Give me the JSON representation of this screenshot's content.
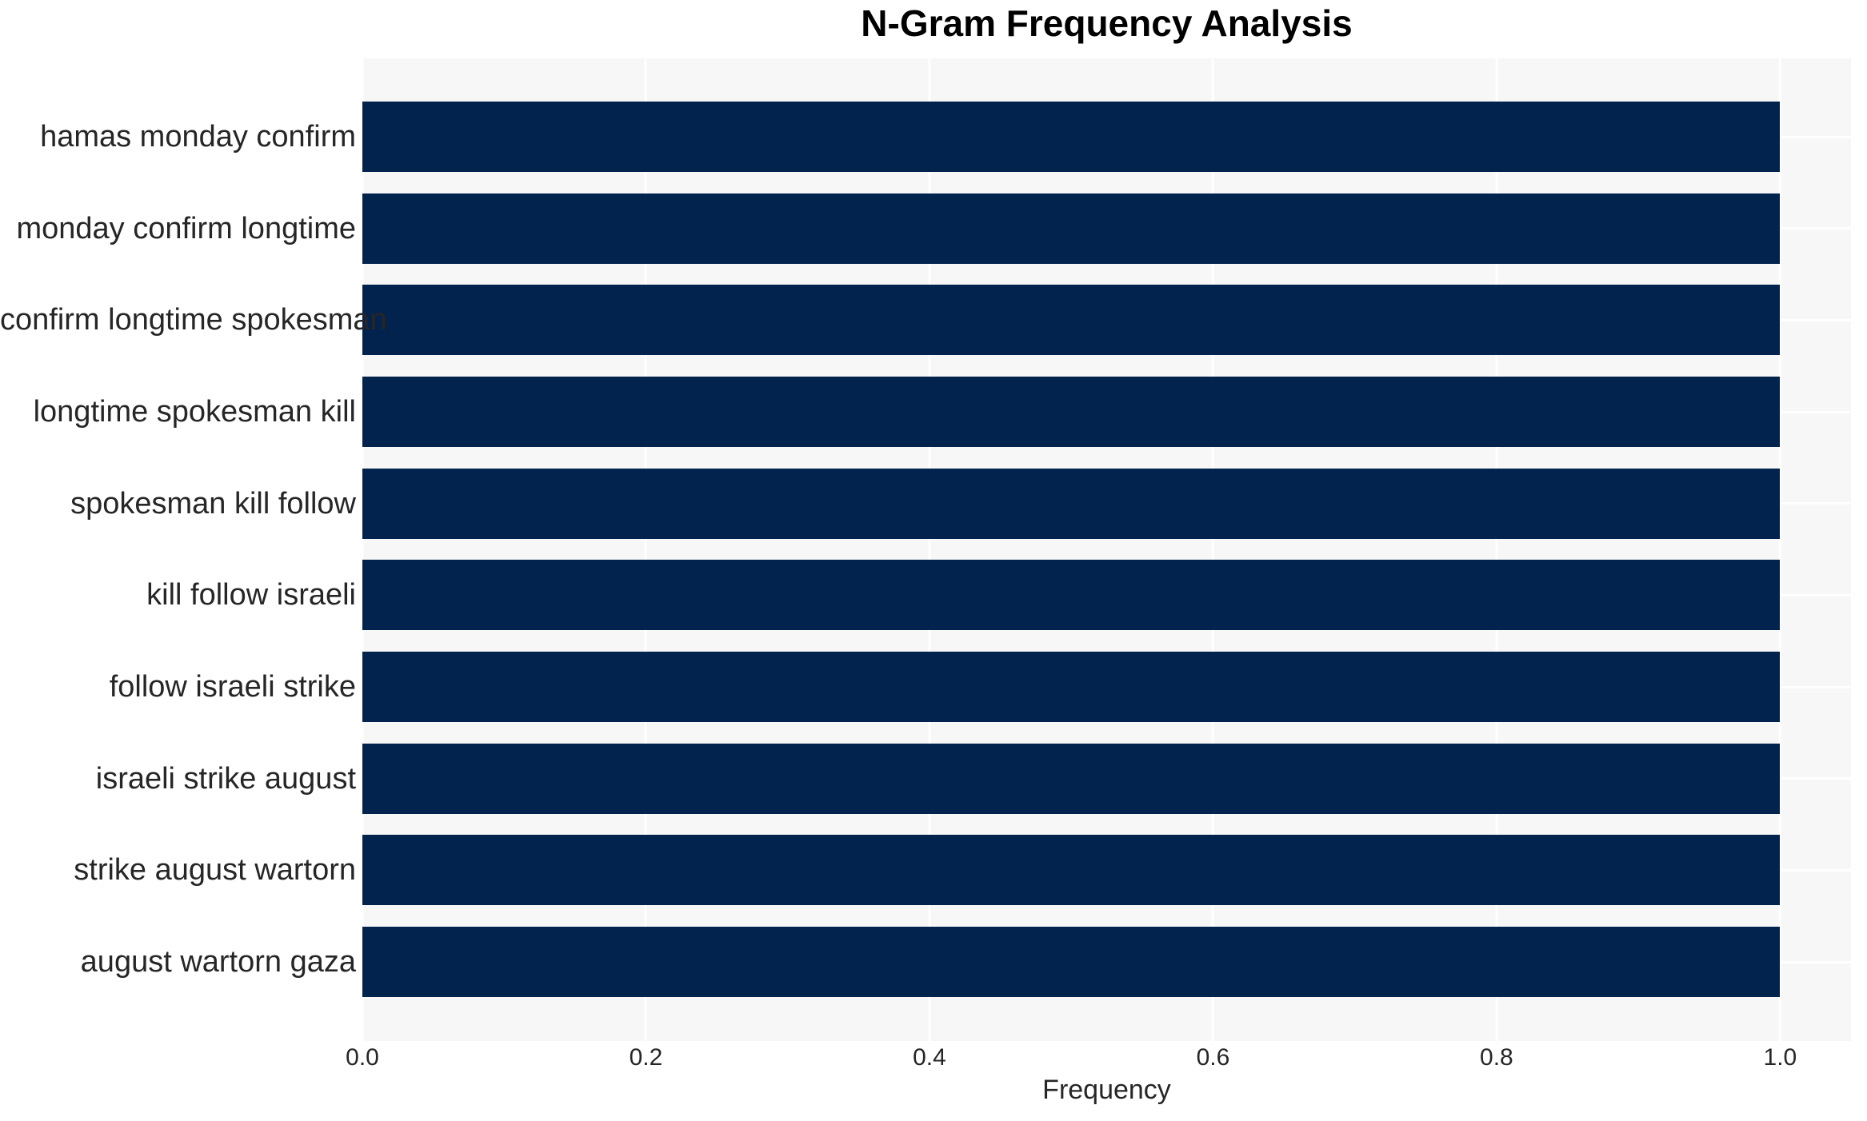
{
  "chart_data": {
    "type": "bar",
    "orientation": "horizontal",
    "title": "N-Gram Frequency Analysis",
    "xlabel": "Frequency",
    "ylabel": "",
    "categories": [
      "hamas monday confirm",
      "monday confirm longtime",
      "confirm longtime spokesman",
      "longtime spokesman kill",
      "spokesman kill follow",
      "kill follow israeli",
      "follow israeli strike",
      "israeli strike august",
      "strike august wartorn",
      "august wartorn gaza"
    ],
    "values": [
      1.0,
      1.0,
      1.0,
      1.0,
      1.0,
      1.0,
      1.0,
      1.0,
      1.0,
      1.0
    ],
    "x_ticks": [
      0.0,
      0.2,
      0.4,
      0.6,
      0.8,
      1.0
    ],
    "x_tick_labels": [
      "0.0",
      "0.2",
      "0.4",
      "0.6",
      "0.8",
      "1.0"
    ],
    "xlim": [
      0,
      1.05
    ],
    "grid": true,
    "legend": false,
    "colors": {
      "bar": "#02234e",
      "plot_background": "#f7f7f7",
      "figure_background": "#ffffff",
      "gridline": "#ffffff",
      "tick_text": "#262626",
      "title_text": "#000000"
    }
  }
}
